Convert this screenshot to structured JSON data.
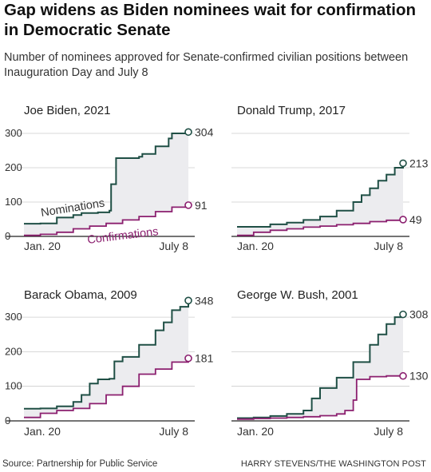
{
  "title": "Gap widens as Biden nominees wait for confirmation in Democratic Senate",
  "subtitle": "Number of nominees approved for Senate-confirmed civilian positions between Inauguration Day and July 8",
  "source": "Source: Partnership for Public Service",
  "credit": "HARRY STEVENS/THE WASHINGTON POST",
  "colors": {
    "nominations": "#1f4f45",
    "confirmations": "#8b1f6f",
    "gap_fill": "#ececef",
    "grid": "#cccccc"
  },
  "chart_data": [
    {
      "type": "area",
      "title": "Joe Biden, 2021",
      "x_ticks": [
        "Jan. 20",
        "July 8"
      ],
      "y_ticks": [
        0,
        100,
        200,
        300
      ],
      "ylim": [
        0,
        320
      ],
      "series_labels": {
        "nominations": "Nominations",
        "confirmations": "Confirmations"
      },
      "series": [
        {
          "name": "Nominations",
          "end_label": "304",
          "points": [
            [
              0,
              37
            ],
            [
              0.1,
              38
            ],
            [
              0.2,
              55
            ],
            [
              0.3,
              62
            ],
            [
              0.35,
              68
            ],
            [
              0.45,
              70
            ],
            [
              0.52,
              75
            ],
            [
              0.53,
              152
            ],
            [
              0.56,
              228
            ],
            [
              0.7,
              232
            ],
            [
              0.72,
              240
            ],
            [
              0.8,
              262
            ],
            [
              0.88,
              285
            ],
            [
              0.9,
              300
            ],
            [
              0.95,
              300
            ],
            [
              1,
              304
            ]
          ]
        },
        {
          "name": "Confirmations",
          "end_label": "91",
          "points": [
            [
              0,
              3
            ],
            [
              0.1,
              6
            ],
            [
              0.2,
              12
            ],
            [
              0.3,
              22
            ],
            [
              0.4,
              30
            ],
            [
              0.5,
              38
            ],
            [
              0.6,
              48
            ],
            [
              0.7,
              58
            ],
            [
              0.8,
              72
            ],
            [
              0.9,
              85
            ],
            [
              1,
              91
            ]
          ]
        }
      ]
    },
    {
      "type": "area",
      "title": "Donald Trump, 2017",
      "x_ticks": [
        "Jan. 20",
        "July 8"
      ],
      "y_ticks": [],
      "ylim": [
        0,
        320
      ],
      "series": [
        {
          "name": "Nominations",
          "end_label": "213",
          "points": [
            [
              0,
              28
            ],
            [
              0.1,
              28
            ],
            [
              0.2,
              35
            ],
            [
              0.3,
              40
            ],
            [
              0.4,
              48
            ],
            [
              0.5,
              58
            ],
            [
              0.6,
              75
            ],
            [
              0.7,
              100
            ],
            [
              0.75,
              120
            ],
            [
              0.8,
              140
            ],
            [
              0.85,
              162
            ],
            [
              0.9,
              180
            ],
            [
              0.95,
              200
            ],
            [
              1,
              213
            ]
          ]
        },
        {
          "name": "Confirmations",
          "end_label": "49",
          "points": [
            [
              0,
              3
            ],
            [
              0.1,
              12
            ],
            [
              0.2,
              18
            ],
            [
              0.3,
              22
            ],
            [
              0.4,
              27
            ],
            [
              0.5,
              30
            ],
            [
              0.6,
              34
            ],
            [
              0.7,
              38
            ],
            [
              0.8,
              43
            ],
            [
              0.9,
              47
            ],
            [
              1,
              49
            ]
          ]
        }
      ]
    },
    {
      "type": "area",
      "title": "Barack Obama, 2009",
      "x_ticks": [
        "Jan. 20",
        "July 8"
      ],
      "y_ticks": [
        0,
        100,
        200,
        300
      ],
      "ylim": [
        0,
        360
      ],
      "series": [
        {
          "name": "Nominations",
          "end_label": "348",
          "points": [
            [
              0,
              35
            ],
            [
              0.1,
              36
            ],
            [
              0.2,
              42
            ],
            [
              0.3,
              55
            ],
            [
              0.35,
              75
            ],
            [
              0.4,
              108
            ],
            [
              0.45,
              120
            ],
            [
              0.52,
              122
            ],
            [
              0.55,
              172
            ],
            [
              0.6,
              185
            ],
            [
              0.7,
              220
            ],
            [
              0.8,
              262
            ],
            [
              0.85,
              285
            ],
            [
              0.9,
              320
            ],
            [
              0.95,
              330
            ],
            [
              1,
              348
            ]
          ]
        },
        {
          "name": "Confirmations",
          "end_label": "181",
          "points": [
            [
              0,
              10
            ],
            [
              0.1,
              22
            ],
            [
              0.2,
              30
            ],
            [
              0.3,
              36
            ],
            [
              0.4,
              50
            ],
            [
              0.5,
              75
            ],
            [
              0.6,
              100
            ],
            [
              0.7,
              135
            ],
            [
              0.8,
              150
            ],
            [
              0.9,
              170
            ],
            [
              1,
              181
            ]
          ]
        }
      ]
    },
    {
      "type": "area",
      "title": "George W. Bush, 2001",
      "x_ticks": [
        "Jan. 20",
        "July 8"
      ],
      "y_ticks": [],
      "ylim": [
        0,
        360
      ],
      "series": [
        {
          "name": "Nominations",
          "end_label": "308",
          "points": [
            [
              0,
              8
            ],
            [
              0.1,
              10
            ],
            [
              0.2,
              14
            ],
            [
              0.3,
              20
            ],
            [
              0.4,
              30
            ],
            [
              0.45,
              65
            ],
            [
              0.5,
              95
            ],
            [
              0.6,
              125
            ],
            [
              0.7,
              170
            ],
            [
              0.8,
              220
            ],
            [
              0.85,
              250
            ],
            [
              0.9,
              280
            ],
            [
              0.95,
              300
            ],
            [
              1,
              308
            ]
          ]
        },
        {
          "name": "Confirmations",
          "end_label": "130",
          "points": [
            [
              0,
              5
            ],
            [
              0.1,
              7
            ],
            [
              0.2,
              8
            ],
            [
              0.3,
              10
            ],
            [
              0.4,
              12
            ],
            [
              0.5,
              15
            ],
            [
              0.6,
              20
            ],
            [
              0.65,
              30
            ],
            [
              0.7,
              60
            ],
            [
              0.72,
              120
            ],
            [
              0.8,
              128
            ],
            [
              0.9,
              130
            ],
            [
              1,
              130
            ]
          ]
        }
      ]
    }
  ]
}
